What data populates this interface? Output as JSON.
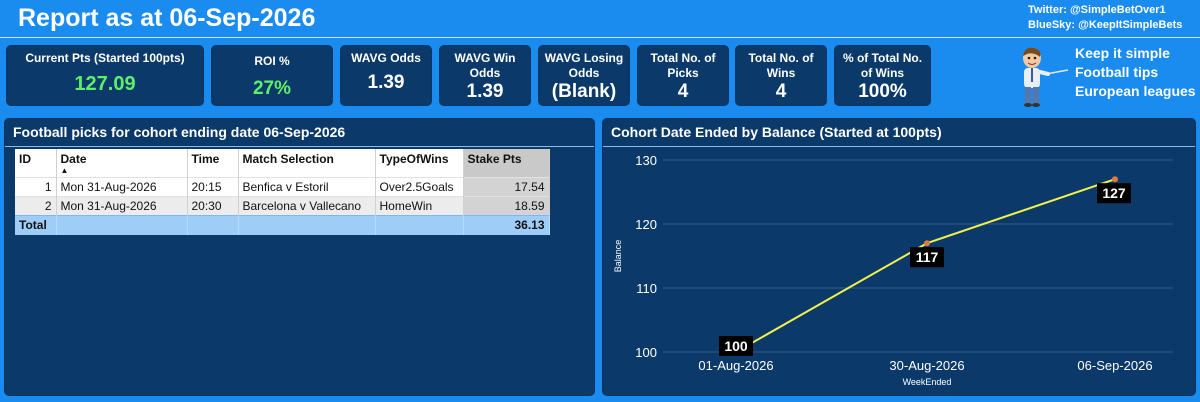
{
  "header": {
    "title": "Report as at 06-Sep-2026",
    "twitter": "Twitter: @SimpleBetOver1",
    "bluesky": "BlueSky: @KeepItSimpleBets"
  },
  "cards": [
    {
      "label": "Current Pts (Started 100pts)",
      "value": "127.09"
    },
    {
      "label": "ROI %",
      "value": "27%"
    },
    {
      "label": "WAVG Odds",
      "value": "1.39"
    },
    {
      "label": "WAVG Win Odds",
      "value": "1.39"
    },
    {
      "label": "WAVG Losing Odds",
      "value": "(Blank)"
    },
    {
      "label": "Total No. of Picks",
      "value": "4"
    },
    {
      "label": "Total No. of Wins",
      "value": "4"
    },
    {
      "label": "% of Total No. of Wins",
      "value": "100%"
    }
  ],
  "tagline": [
    "Keep it simple",
    "Football tips",
    "European leagues"
  ],
  "table_panel": {
    "title": "Football picks for cohort ending date 06-Sep-2026",
    "columns": [
      "ID",
      "Date",
      "Time",
      "Match Selection",
      "TypeOfWins",
      "Stake Pts"
    ],
    "rows": [
      {
        "id": "1",
        "date": "Mon 31-Aug-2026",
        "time": "20:15",
        "match": "Benfica v Estoril",
        "type": "Over2.5Goals",
        "stake": "17.54"
      },
      {
        "id": "2",
        "date": "Mon 31-Aug-2026",
        "time": "20:30",
        "match": "Barcelona v Vallecano",
        "type": "HomeWin",
        "stake": "18.59"
      }
    ],
    "total_label": "Total",
    "total_stake": "36.13"
  },
  "chart_panel": {
    "title": "Cohort Date Ended by Balance (Started at 100pts)"
  },
  "chart_data": {
    "type": "line",
    "title": "Cohort Date Ended by Balance (Started at 100pts)",
    "xlabel": "WeekEnded",
    "ylabel": "Balance",
    "categories": [
      "01-Aug-2026",
      "30-Aug-2026",
      "06-Sep-2026"
    ],
    "series": [
      {
        "values": [
          100,
          117,
          127
        ],
        "labels": [
          "100",
          "117",
          "127"
        ]
      }
    ],
    "ylim": [
      100,
      130
    ],
    "yticks": [
      100,
      110,
      120,
      130
    ],
    "line_color": "#f2f24a",
    "marker_color": "#e07a3a",
    "grid": true
  }
}
